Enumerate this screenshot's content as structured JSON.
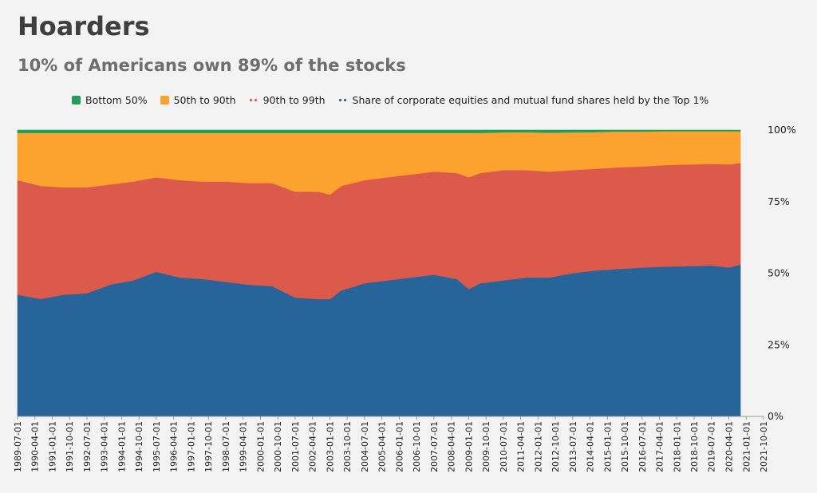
{
  "title": "Hoarders",
  "subtitle": "10% of Americans own 89% of the stocks",
  "legend": [
    {
      "label": "Bottom 50%",
      "color": "#1f9e5a",
      "style": "square"
    },
    {
      "label": "50th to 90th",
      "color": "#fba22f",
      "style": "square"
    },
    {
      "label": "90th to 99th",
      "color": "#dc5a4b",
      "style": "dotted"
    },
    {
      "label": "Share of corporate equities and mutual fund shares held by the Top 1%",
      "color": "#266499",
      "style": "dotted"
    }
  ],
  "chart_data": {
    "type": "area",
    "stacked": true,
    "title": "Hoarders",
    "subtitle": "10% of Americans own 89% of the stocks",
    "legend_position": "top",
    "ylim": [
      0,
      100
    ],
    "y_ticks": [
      "0%",
      "25%",
      "50%",
      "75%",
      "100%"
    ],
    "x_range": [
      "1989-07-01",
      "2021-10-01"
    ],
    "x_tick_labels": [
      "1989-07-01",
      "1990-04-01",
      "1991-01-01",
      "1991-10-01",
      "1992-07-01",
      "1993-04-01",
      "1994-01-01",
      "1994-10-01",
      "1995-07-01",
      "1996-04-01",
      "1997-01-01",
      "1997-10-01",
      "1998-07-01",
      "1999-04-01",
      "2000-01-01",
      "2000-10-01",
      "2001-07-01",
      "2002-04-01",
      "2003-01-01",
      "2003-10-01",
      "2004-07-01",
      "2005-04-01",
      "2006-01-01",
      "2006-10-01",
      "2007-07-01",
      "2008-04-01",
      "2009-01-01",
      "2009-10-01",
      "2010-07-01",
      "2011-04-01",
      "2012-01-01",
      "2012-10-01",
      "2013-07-01",
      "2014-04-01",
      "2015-01-01",
      "2015-10-01",
      "2016-07-01",
      "2017-04-01",
      "2018-01-01",
      "2018-10-01",
      "2019-07-01",
      "2020-04-01",
      "2021-01-01",
      "2021-10-01"
    ],
    "x": [
      "1989-07-01",
      "1990-07-01",
      "1991-07-01",
      "1992-07-01",
      "1993-07-01",
      "1994-07-01",
      "1995-07-01",
      "1996-07-01",
      "1997-07-01",
      "1998-07-01",
      "1999-07-01",
      "2000-07-01",
      "2001-07-01",
      "2002-07-01",
      "2003-01-01",
      "2003-07-01",
      "2004-07-01",
      "2005-07-01",
      "2006-07-01",
      "2007-07-01",
      "2008-07-01",
      "2009-01-01",
      "2009-07-01",
      "2010-07-01",
      "2011-07-01",
      "2012-07-01",
      "2013-07-01",
      "2014-07-01",
      "2015-07-01",
      "2016-07-01",
      "2017-07-01",
      "2018-07-01",
      "2019-07-01",
      "2020-04-01",
      "2020-10-01"
    ],
    "series": [
      {
        "name": "Share of corporate equities and mutual fund shares held by the Top 1%",
        "color": "#266499",
        "values": [
          42.5,
          41.0,
          42.5,
          43.0,
          46.0,
          47.5,
          50.5,
          48.5,
          48.0,
          47.0,
          46.0,
          45.5,
          41.5,
          41.0,
          41.0,
          44.0,
          46.5,
          47.5,
          48.5,
          49.5,
          48.0,
          44.5,
          46.5,
          47.5,
          48.5,
          48.5,
          50.0,
          51.0,
          51.5,
          52.0,
          52.3,
          52.5,
          52.7,
          52.0,
          53.0
        ]
      },
      {
        "name": "90th to 99th",
        "color": "#dc5a4b",
        "values": [
          40.0,
          39.5,
          37.5,
          37.0,
          35.0,
          34.5,
          33.0,
          34.0,
          34.0,
          35.0,
          35.5,
          36.0,
          37.0,
          37.5,
          36.5,
          36.5,
          36.0,
          36.0,
          36.0,
          36.0,
          37.0,
          39.0,
          38.5,
          38.5,
          37.5,
          37.0,
          36.0,
          35.5,
          35.5,
          35.3,
          35.5,
          35.5,
          35.5,
          36.0,
          35.5
        ]
      },
      {
        "name": "50th to 90th",
        "color": "#fba22f",
        "values": [
          16.5,
          18.5,
          19.0,
          19.0,
          18.0,
          17.0,
          15.5,
          16.5,
          17.0,
          17.0,
          17.5,
          17.5,
          20.5,
          20.5,
          21.5,
          18.5,
          16.5,
          15.5,
          14.5,
          13.5,
          14.0,
          15.5,
          14.0,
          13.2,
          13.2,
          13.6,
          13.2,
          12.8,
          12.5,
          12.2,
          11.8,
          11.6,
          11.4,
          11.6,
          11.1
        ]
      },
      {
        "name": "Bottom 50%",
        "color": "#1f9e5a",
        "values": [
          1.0,
          1.0,
          1.0,
          1.0,
          1.0,
          1.0,
          1.0,
          1.0,
          1.0,
          1.0,
          1.0,
          1.0,
          1.0,
          1.0,
          1.0,
          1.0,
          1.0,
          1.0,
          1.0,
          1.0,
          1.0,
          1.0,
          1.0,
          0.8,
          0.8,
          0.9,
          0.8,
          0.7,
          0.5,
          0.5,
          0.4,
          0.4,
          0.4,
          0.4,
          0.4
        ]
      }
    ]
  }
}
